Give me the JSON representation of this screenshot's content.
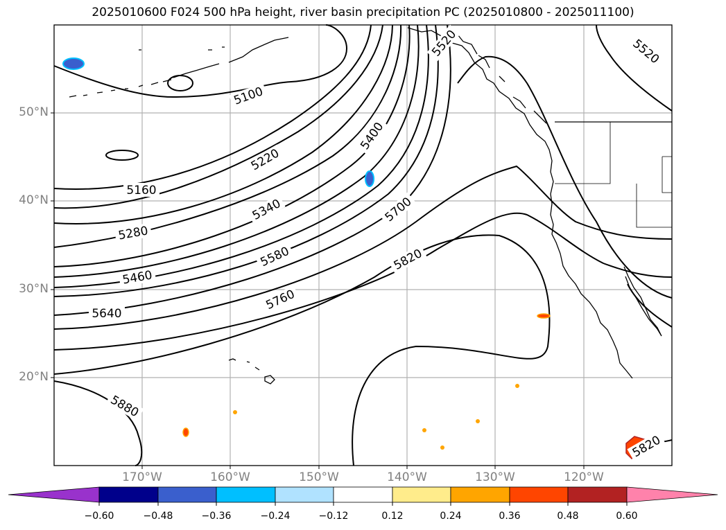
{
  "title": "2025010600 F024 500 hPa height, river basin precipitation PC (2025010800 - 2025011100)",
  "latitude_labels": [
    "50°N",
    "40°N",
    "30°N",
    "20°N"
  ],
  "longitude_labels": [
    "170°W",
    "160°W",
    "150°W",
    "140°W",
    "130°W",
    "120°W"
  ],
  "contour_labels": [
    "5100",
    "5160",
    "5220",
    "5280",
    "5340",
    "5400",
    "5460",
    "5520",
    "5580",
    "5640",
    "5700",
    "5760",
    "5820",
    "5880",
    "5820",
    "5520"
  ],
  "colorbar": {
    "labels": [
      "−0.60",
      "−0.48",
      "−0.36",
      "−0.24",
      "−0.12",
      "0.12",
      "0.24",
      "0.36",
      "0.48",
      "0.60"
    ],
    "colors": [
      "#9932cc",
      "#00008b",
      "#3a5fcd",
      "#00bfff",
      "#b0e2ff",
      "#ffffff",
      "#ffec8b",
      "#ffa500",
      "#ff4500",
      "#b22222",
      "#ff82ab"
    ]
  },
  "precip_color_codes": {
    "negative": "#3a5fcd",
    "positive": "#ff4500"
  }
}
